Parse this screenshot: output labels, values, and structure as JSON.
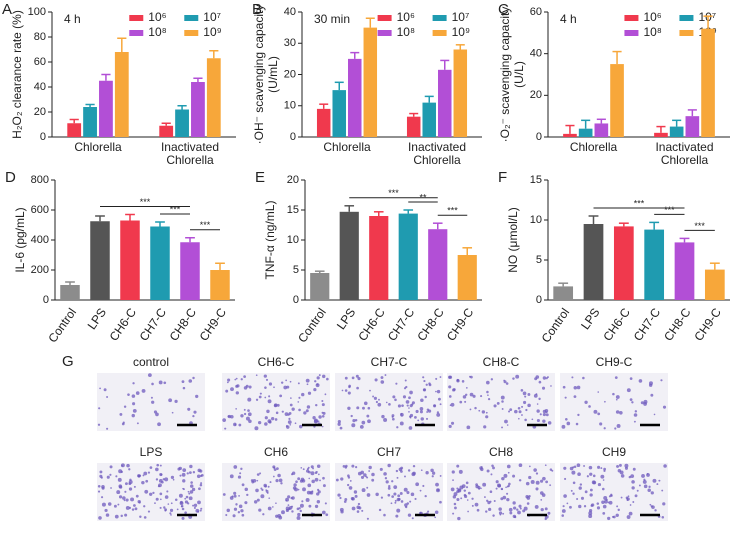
{
  "chart_data": [
    {
      "panel": "A",
      "type": "grouped_bar",
      "annotation": "4 h",
      "ylabel": [
        "H₂O₂ clearance rate (%)"
      ],
      "categories": [
        "Chlorella",
        "Inactivated Chlorella"
      ],
      "ylim": [
        0,
        100
      ],
      "yticks": [
        0,
        20,
        40,
        60,
        80,
        100
      ],
      "series": [
        {
          "name": "10⁶",
          "color": "#f0394d",
          "values": [
            11,
            9
          ],
          "errors": [
            3,
            2
          ]
        },
        {
          "name": "10⁷",
          "color": "#1f9bb0",
          "values": [
            24,
            22
          ],
          "errors": [
            2,
            3
          ]
        },
        {
          "name": "10⁸",
          "color": "#b24fd6",
          "values": [
            45,
            44
          ],
          "errors": [
            5,
            3
          ]
        },
        {
          "name": "10⁹",
          "color": "#f7a73a",
          "values": [
            68,
            63
          ],
          "errors": [
            11,
            6
          ]
        }
      ]
    },
    {
      "panel": "B",
      "type": "grouped_bar",
      "annotation": "30 min",
      "ylabel": [
        "·OH⁻ scavenging capacity",
        "(U/mL)"
      ],
      "categories": [
        "Chlorella",
        "Inactivated Chlorella"
      ],
      "ylim": [
        0,
        40
      ],
      "yticks": [
        0,
        10,
        20,
        30,
        40
      ],
      "series": [
        {
          "name": "10⁶",
          "color": "#f0394d",
          "values": [
            9,
            6.5
          ],
          "errors": [
            1.5,
            1
          ]
        },
        {
          "name": "10⁷",
          "color": "#1f9bb0",
          "values": [
            15,
            11
          ],
          "errors": [
            2.5,
            2
          ]
        },
        {
          "name": "10⁸",
          "color": "#b24fd6",
          "values": [
            25,
            21.5
          ],
          "errors": [
            2,
            3
          ]
        },
        {
          "name": "10⁹",
          "color": "#f7a73a",
          "values": [
            35,
            28
          ],
          "errors": [
            3,
            1.5
          ]
        }
      ]
    },
    {
      "panel": "C",
      "type": "grouped_bar",
      "annotation": "4 h",
      "ylabel": [
        "·O₂⁻ scavenging capacity",
        "(U/L)"
      ],
      "categories": [
        "Chlorella",
        "Inactivated Chlorella"
      ],
      "ylim": [
        0,
        60
      ],
      "yticks": [
        0,
        20,
        40,
        60
      ],
      "series": [
        {
          "name": "10⁶",
          "color": "#f0394d",
          "values": [
            1.5,
            2
          ],
          "errors": [
            4,
            3
          ]
        },
        {
          "name": "10⁷",
          "color": "#1f9bb0",
          "values": [
            4,
            5
          ],
          "errors": [
            4,
            3
          ]
        },
        {
          "name": "10⁸",
          "color": "#b24fd6",
          "values": [
            6.5,
            10
          ],
          "errors": [
            2,
            3
          ]
        },
        {
          "name": "10⁹",
          "color": "#f7a73a",
          "values": [
            35,
            52
          ],
          "errors": [
            6,
            6
          ]
        }
      ]
    },
    {
      "panel": "D",
      "type": "bar",
      "ylabel": [
        "IL-6 (pg/mL)"
      ],
      "categories": [
        "Control",
        "LPS",
        "CH6-C",
        "CH7-C",
        "CH8-C",
        "CH9-C"
      ],
      "colors": [
        "#8c8c8c",
        "#555555",
        "#f0394d",
        "#1f9bb0",
        "#b24fd6",
        "#f7a73a"
      ],
      "values": [
        100,
        525,
        530,
        490,
        385,
        200
      ],
      "errors": [
        20,
        35,
        40,
        30,
        30,
        45
      ],
      "ylim": [
        0,
        800
      ],
      "yticks": [
        0,
        200,
        400,
        600,
        800
      ],
      "significance": [
        {
          "from": 1,
          "to": 4,
          "label": "***"
        },
        {
          "from": 3,
          "to": 4,
          "label": "***"
        },
        {
          "from": 4,
          "to": 5,
          "label": "***"
        }
      ]
    },
    {
      "panel": "E",
      "type": "bar",
      "ylabel": [
        "TNF-α (ng/mL)"
      ],
      "categories": [
        "Control",
        "LPS",
        "CH6-C",
        "CH7-C",
        "CH8-C",
        "CH9-C"
      ],
      "colors": [
        "#8c8c8c",
        "#555555",
        "#f0394d",
        "#1f9bb0",
        "#b24fd6",
        "#f7a73a"
      ],
      "values": [
        4.5,
        14.7,
        14,
        14.4,
        11.8,
        7.5
      ],
      "errors": [
        0.3,
        1,
        0.7,
        0.6,
        1,
        1.2
      ],
      "ylim": [
        0,
        20
      ],
      "yticks": [
        0,
        5,
        10,
        15,
        20
      ],
      "significance": [
        {
          "from": 1,
          "to": 4,
          "label": "***"
        },
        {
          "from": 3,
          "to": 4,
          "label": "**"
        },
        {
          "from": 4,
          "to": 5,
          "label": "***"
        }
      ]
    },
    {
      "panel": "F",
      "type": "bar",
      "ylabel": [
        "NO (μmol/L)"
      ],
      "categories": [
        "Control",
        "LPS",
        "CH6-C",
        "CH7-C",
        "CH8-C",
        "CH9-C"
      ],
      "colors": [
        "#8c8c8c",
        "#555555",
        "#f0394d",
        "#1f9bb0",
        "#b24fd6",
        "#f7a73a"
      ],
      "values": [
        1.7,
        9.5,
        9.2,
        8.8,
        7.2,
        3.8
      ],
      "errors": [
        0.4,
        1,
        0.4,
        0.9,
        0.5,
        0.8
      ],
      "ylim": [
        0,
        15
      ],
      "yticks": [
        0,
        5,
        10,
        15
      ],
      "significance": [
        {
          "from": 1,
          "to": 4,
          "label": "***"
        },
        {
          "from": 3,
          "to": 4,
          "label": "***"
        },
        {
          "from": 4,
          "to": 5,
          "label": "***"
        }
      ]
    }
  ],
  "micrographs": {
    "panel": "G",
    "labels": [
      "control",
      "CH6-C",
      "CH7-C",
      "CH8-C",
      "CH9-C",
      "LPS",
      "CH6",
      "CH7",
      "CH8",
      "CH9"
    ]
  }
}
